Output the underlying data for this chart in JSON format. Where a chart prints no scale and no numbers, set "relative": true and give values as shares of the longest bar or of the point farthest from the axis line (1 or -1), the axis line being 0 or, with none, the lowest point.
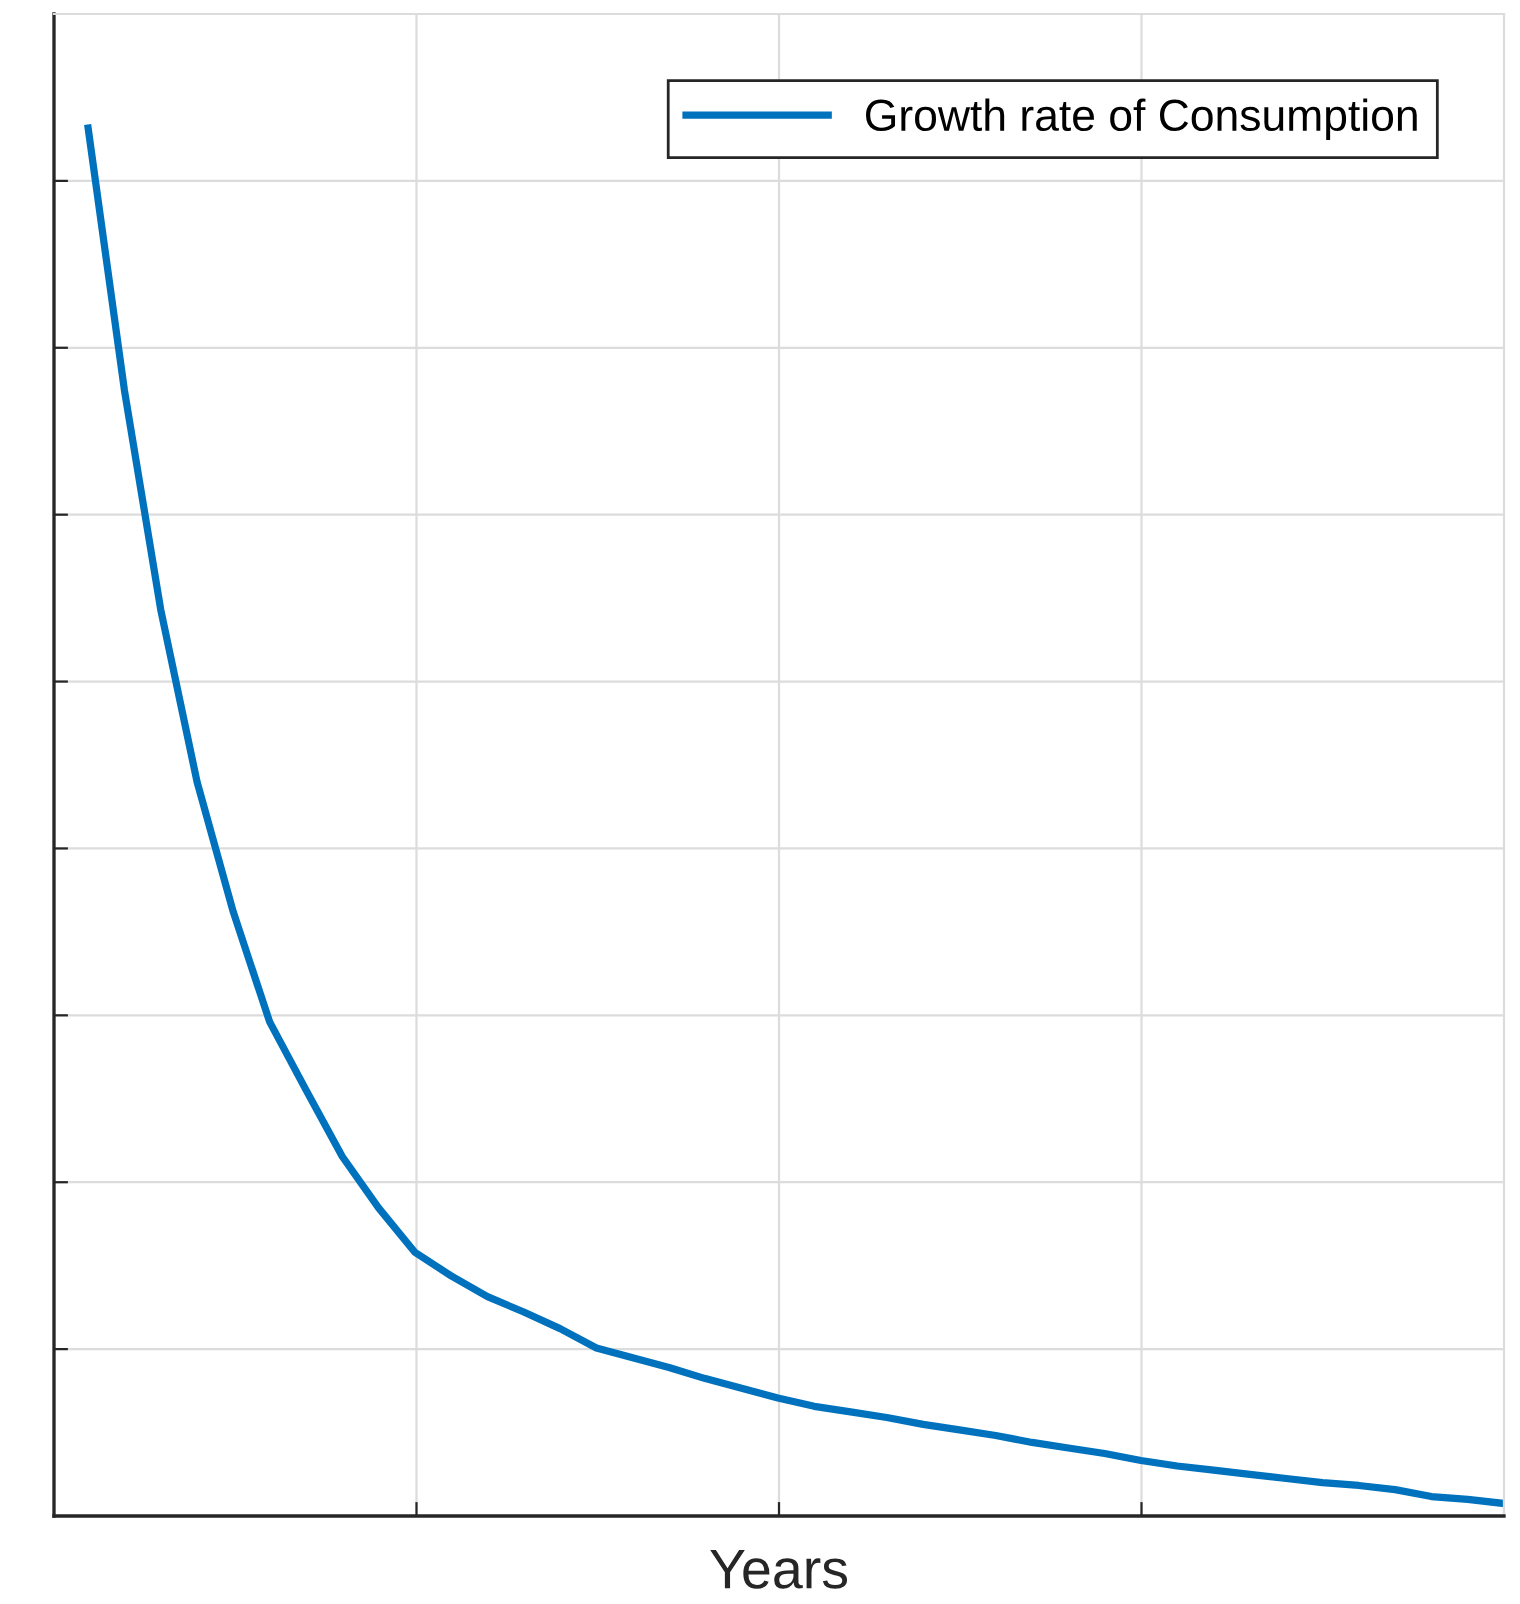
{
  "chart_data": {
    "type": "line",
    "xlabel": "Years",
    "relative": true,
    "grid": true,
    "legend": "top right",
    "categories": [
      null,
      null,
      null,
      null,
      null,
      null,
      null,
      null,
      null,
      null,
      null,
      null,
      null,
      null,
      null,
      null,
      null,
      null,
      null,
      null,
      null,
      null,
      null,
      null,
      null,
      null,
      null,
      null,
      null,
      null,
      null,
      null,
      null,
      null,
      null,
      null,
      null,
      null,
      null,
      null
    ],
    "series": [
      {
        "name": "Growth rate of Consumption",
        "color": "#0072bd",
        "values": [
          1,
          0.811,
          0.653,
          0.529,
          0.435,
          0.356,
          0.307,
          0.259,
          0.222,
          0.19,
          0.173,
          0.158,
          0.147,
          0.135,
          0.121,
          0.114,
          0.107,
          0.099,
          0.092,
          0.085,
          0.079,
          0.075,
          0.071,
          0.066,
          0.062,
          0.058,
          0.053,
          0.049,
          0.045,
          0.04,
          0.036,
          0.033,
          0.03,
          0.027,
          0.024,
          0.022,
          0.019,
          0.014,
          0.012,
          0.009
        ]
      }
    ]
  }
}
